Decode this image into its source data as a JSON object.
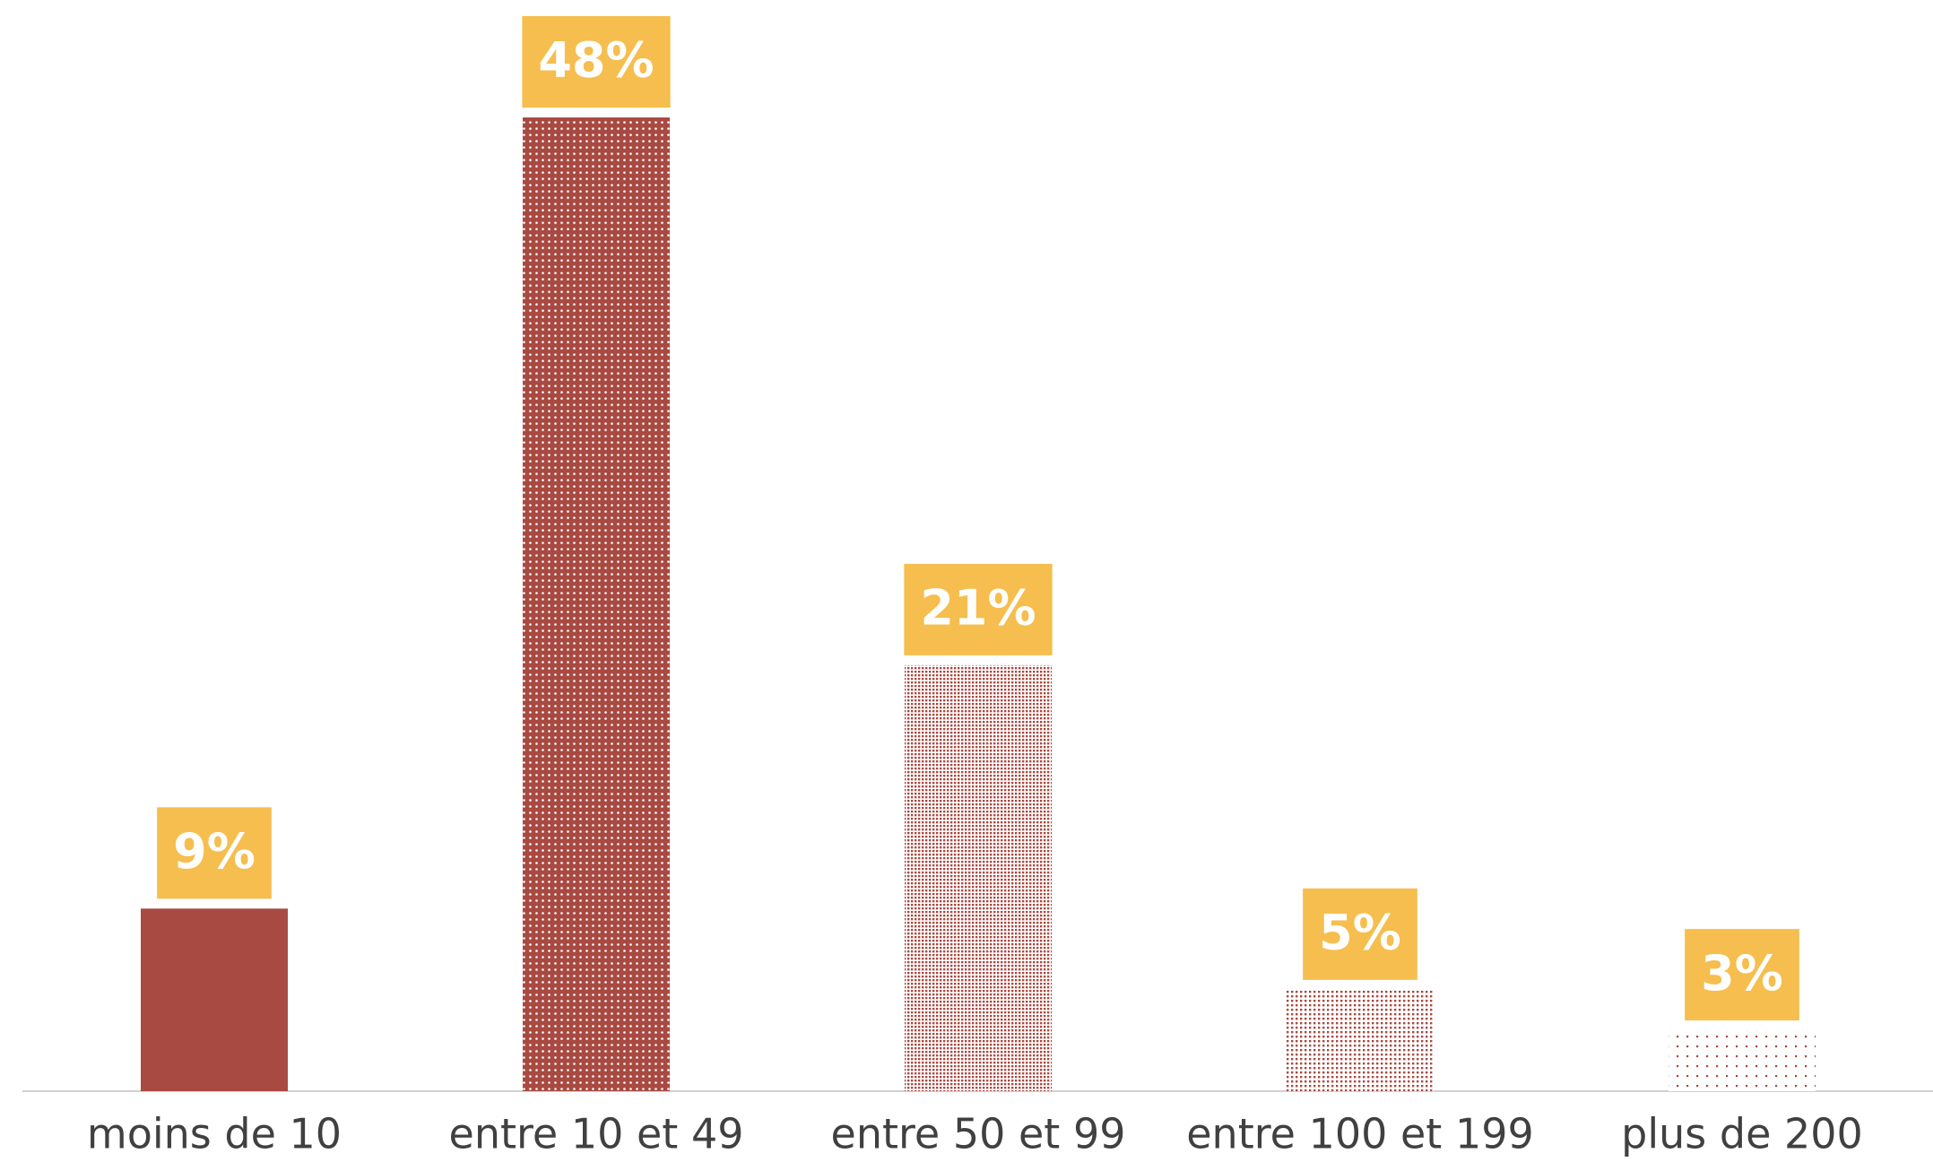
{
  "chart_data": {
    "type": "bar",
    "categories": [
      "moins de 10",
      "entre 10 et 49",
      "entre 50 et 99",
      "entre 100 et 199",
      "plus de 200"
    ],
    "values": [
      9,
      48,
      21,
      5,
      3
    ],
    "value_labels": [
      "9%",
      "48%",
      "21%",
      "5%",
      "3%"
    ],
    "color": "#a84a42",
    "label_color": "#f5be4e"
  }
}
